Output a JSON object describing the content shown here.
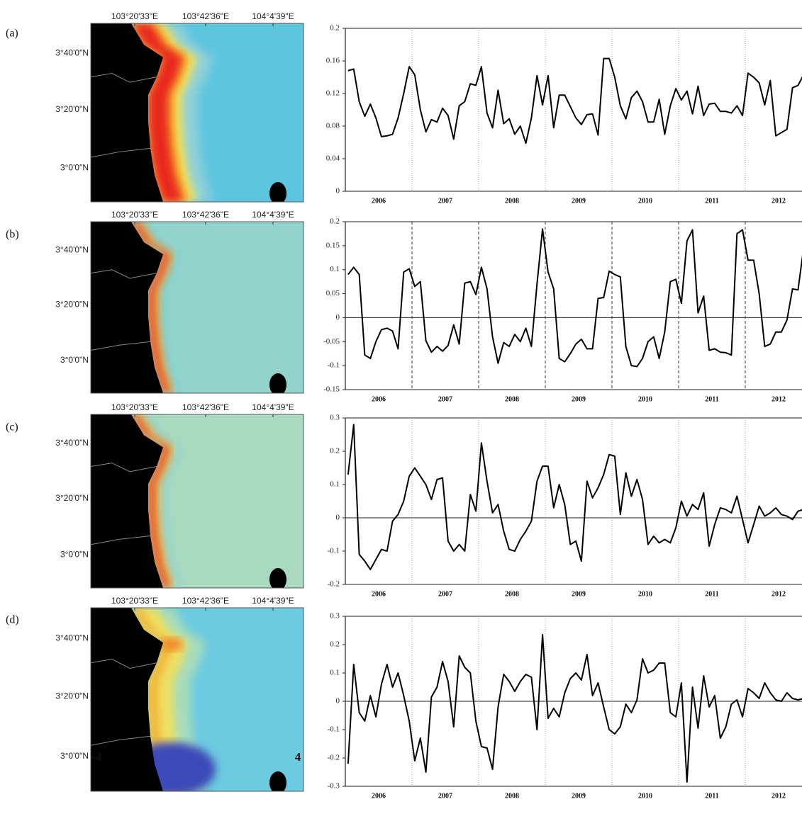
{
  "panel_labels": [
    "(a)",
    "(b)",
    "(c)",
    "(d)"
  ],
  "map_axes": {
    "lon": [
      "103°20'33\"E",
      "103°42'36\"E",
      "104°4'39\"E"
    ],
    "lat": [
      "3°40'0\"N",
      "3°20'0\"N",
      "3°0'0\"N"
    ]
  },
  "colorbar": {
    "ticks": [
      -4,
      4
    ]
  },
  "chart_data": [
    {
      "type": "line",
      "year_labels": [
        "2006",
        "2007",
        "2008",
        "2009",
        "2010",
        "2011",
        "2012"
      ],
      "color": "#000000",
      "values": [
        0.148,
        0.15,
        0.11,
        0.092,
        0.107,
        0.09,
        0.067,
        0.068,
        0.07,
        0.09,
        0.12,
        0.153,
        0.143,
        0.1,
        0.073,
        0.088,
        0.085,
        0.102,
        0.093,
        0.064,
        0.105,
        0.11,
        0.132,
        0.13,
        0.153,
        0.096,
        0.078,
        0.124,
        0.083,
        0.089,
        0.07,
        0.08,
        0.059,
        0.09,
        0.142,
        0.106,
        0.142,
        0.078,
        0.118,
        0.118,
        0.104,
        0.09,
        0.082,
        0.094,
        0.095,
        0.069,
        0.163,
        0.163,
        0.14,
        0.105,
        0.089,
        0.115,
        0.123,
        0.11,
        0.085,
        0.085,
        0.113,
        0.07,
        0.105,
        0.126,
        0.112,
        0.123,
        0.095,
        0.129,
        0.093,
        0.107,
        0.108,
        0.098,
        0.098,
        0.096,
        0.105,
        0.093,
        0.145,
        0.14,
        0.133,
        0.106,
        0.136,
        0.068,
        0.072,
        0.076,
        0.127,
        0.13,
        0.143,
        0.135
      ],
      "ylim": [
        0,
        0.2
      ],
      "yticks": [
        0,
        0.04,
        0.08,
        0.12,
        0.16,
        0.2
      ],
      "zero_line": false
    },
    {
      "type": "line",
      "year_labels": [
        "2006",
        "2007",
        "2008",
        "2009",
        "2010",
        "2011",
        "2012"
      ],
      "color": "#000000",
      "values": [
        0.09,
        0.105,
        0.09,
        -0.078,
        -0.085,
        -0.05,
        -0.025,
        -0.022,
        -0.028,
        -0.065,
        0.095,
        0.102,
        0.065,
        0.075,
        -0.048,
        -0.072,
        -0.06,
        -0.07,
        -0.058,
        -0.015,
        -0.055,
        0.072,
        0.075,
        0.048,
        0.105,
        0.06,
        -0.04,
        -0.095,
        -0.052,
        -0.06,
        -0.035,
        -0.05,
        -0.022,
        -0.06,
        0.07,
        0.185,
        0.095,
        0.06,
        -0.085,
        -0.092,
        -0.075,
        -0.055,
        -0.045,
        -0.065,
        -0.065,
        0.04,
        0.042,
        0.097,
        0.09,
        0.085,
        -0.06,
        -0.1,
        -0.102,
        -0.085,
        -0.05,
        -0.04,
        -0.085,
        -0.03,
        0.075,
        0.08,
        0.03,
        0.16,
        0.183,
        0.01,
        0.045,
        -0.068,
        -0.065,
        -0.072,
        -0.073,
        -0.078,
        0.175,
        0.183,
        0.12,
        0.12,
        0.05,
        -0.06,
        -0.055,
        -0.03,
        -0.03,
        -0.005,
        0.06,
        0.058,
        0.145,
        0.135
      ],
      "ylim": [
        -0.15,
        0.2
      ],
      "yticks": [
        -0.15,
        -0.1,
        -0.05,
        0,
        0.05,
        0.1,
        0.15,
        0.2
      ],
      "zero_line": true
    },
    {
      "type": "line",
      "year_labels": [
        "2006",
        "2007",
        "2008",
        "2009",
        "2010",
        "2011",
        "2012"
      ],
      "color": "#000000",
      "values": [
        0.13,
        0.28,
        -0.11,
        -0.13,
        -0.155,
        -0.125,
        -0.095,
        -0.1,
        -0.01,
        0.01,
        0.05,
        0.125,
        0.15,
        0.125,
        0.1,
        0.055,
        0.115,
        0.12,
        -0.07,
        -0.1,
        -0.08,
        -0.1,
        0.07,
        0.02,
        0.225,
        0.11,
        0.015,
        0.04,
        -0.04,
        -0.095,
        -0.1,
        -0.065,
        -0.04,
        -0.01,
        0.11,
        0.155,
        0.155,
        0.03,
        0.1,
        0.04,
        -0.08,
        -0.07,
        -0.13,
        0.11,
        0.06,
        0.09,
        0.13,
        0.19,
        0.185,
        0.01,
        0.135,
        0.065,
        0.115,
        0.055,
        -0.08,
        -0.055,
        -0.075,
        -0.065,
        -0.075,
        -0.03,
        0.05,
        0.005,
        0.04,
        0.025,
        0.075,
        -0.085,
        -0.02,
        0.03,
        0.025,
        0.015,
        0.065,
        -0.005,
        -0.075,
        -0.02,
        0.035,
        0.005,
        0.015,
        0.03,
        0.01,
        0.005,
        -0.005,
        0.02,
        0.025,
        0.02
      ],
      "ylim": [
        -0.2,
        0.3
      ],
      "yticks": [
        -0.2,
        -0.1,
        0,
        0.1,
        0.2,
        0.3
      ],
      "zero_line": true
    },
    {
      "type": "line",
      "year_labels": [
        "2006",
        "2007",
        "2008",
        "2009",
        "2010",
        "2011",
        "2012"
      ],
      "color": "#000000",
      "values": [
        -0.22,
        0.13,
        -0.04,
        -0.07,
        0.02,
        -0.055,
        0.06,
        0.13,
        0.05,
        0.1,
        0.02,
        -0.07,
        -0.21,
        -0.13,
        -0.25,
        0.015,
        0.05,
        0.14,
        0.07,
        -0.09,
        0.16,
        0.12,
        0.1,
        -0.07,
        -0.16,
        -0.165,
        -0.24,
        -0.02,
        0.095,
        0.07,
        0.035,
        0.07,
        0.095,
        0.085,
        -0.1,
        0.235,
        -0.06,
        -0.025,
        -0.055,
        0.03,
        0.08,
        0.1,
        0.075,
        0.165,
        0.02,
        0.065,
        -0.02,
        -0.1,
        -0.115,
        -0.09,
        -0.01,
        -0.04,
        0.005,
        0.15,
        0.1,
        0.11,
        0.135,
        0.135,
        -0.04,
        -0.055,
        0.065,
        -0.285,
        0.05,
        -0.095,
        0.09,
        -0.02,
        0.02,
        -0.13,
        -0.09,
        -0.01,
        0.005,
        -0.055,
        0.045,
        0.03,
        0.01,
        0.065,
        0.03,
        0.005,
        0,
        0.03,
        0.01,
        0.005,
        0.01,
        0.02
      ],
      "ylim": [
        -0.3,
        0.3
      ],
      "yticks": [
        -0.3,
        -0.2,
        -0.1,
        0,
        0.1,
        0.2,
        0.3
      ],
      "zero_line": true
    }
  ]
}
